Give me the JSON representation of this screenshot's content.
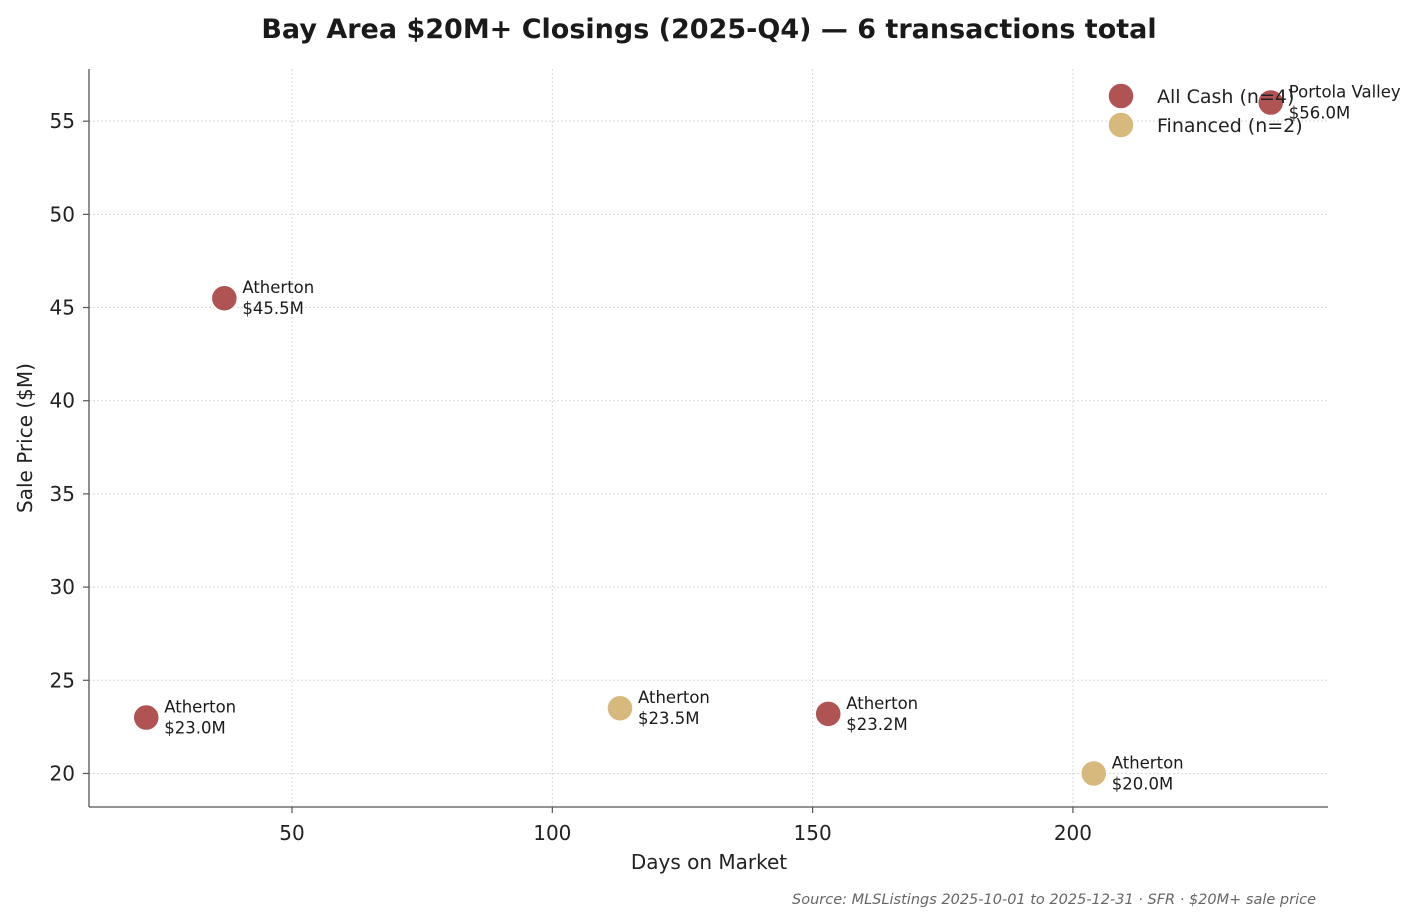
{
  "chart_data": {
    "type": "scatter",
    "title": "Bay Area $20M+ Closings (2025-Q4) — 6 transactions total",
    "xlabel": "Days on Market",
    "ylabel": "Sale Price ($M)",
    "xlim": [
      11,
      249
    ],
    "ylim": [
      18.2,
      57.8
    ],
    "xticks": [
      50,
      100,
      150,
      200
    ],
    "yticks": [
      20,
      25,
      30,
      35,
      40,
      45,
      50,
      55
    ],
    "grid": true,
    "legend_position": "top-right",
    "source": "Source: MLSListings 2025-10-01 to 2025-12-31 · SFR · $20M+ sale price",
    "series": [
      {
        "name": "All Cash (n=4)",
        "color": "#a84444",
        "points": [
          {
            "x": 22,
            "y": 23.0,
            "city": "Atherton",
            "price_label": "$23.0M"
          },
          {
            "x": 37,
            "y": 45.5,
            "city": "Atherton",
            "price_label": "$45.5M"
          },
          {
            "x": 153,
            "y": 23.2,
            "city": "Atherton",
            "price_label": "$23.2M"
          },
          {
            "x": 238,
            "y": 56.0,
            "city": "Portola Valley",
            "price_label": "$56.0M"
          }
        ]
      },
      {
        "name": "Financed (n=2)",
        "color": "#d4b373",
        "points": [
          {
            "x": 113,
            "y": 23.5,
            "city": "Atherton",
            "price_label": "$23.5M"
          },
          {
            "x": 204,
            "y": 20.0,
            "city": "Atherton",
            "price_label": "$20.0M"
          }
        ]
      }
    ]
  }
}
